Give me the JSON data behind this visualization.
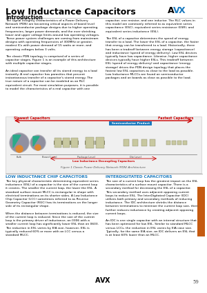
{
  "title": "Low Inductance Capacitors",
  "subtitle": "Introduction",
  "page_number": "59",
  "section1_title": "LOW INDUCTANCE CHIP CAPACITORS",
  "section2_title": "INTERDIGITATED CAPACITORS",
  "body_text_left": "The signal integrity characteristics of a Power Delivery\nNetwork (PDN) are becoming critical aspects of board level\nand semiconductor package designs due to higher operating\nfrequencies, larger power demands, and the ever shrinking\nlower and upper voltage limits around low operating voltages.\nThese power system challenges are coming from mainstream\ndesigns with operating frequencies of 300MHz or greater,\nmodest ICs with power demand of 15 watts or more, and\noperating voltages below 3 volts.\n\nThe classic PDN topology is comprised of a series of\ncapacitor stages. Figure 1 is an example of this architecture\nwith multiple capacitor stages.\n\nAn ideal capacitor can transfer all its stored energy to a load\ninstantly. A real capacitor has parasitics that prevent\ninstantaneous transfer of a capacitor's stored energy. The\ntrue nature of a capacitor can be modeled as an RLC\nequivalent circuit. For most simulation purposes, it is possible\nto model the characteristics of a real capacitor with one",
  "body_text_right": "capacitor, one resistor, and one inductor. The RLC values in\nthis model are commonly referred to as equivalent series\ncapacitance (ESC), equivalent series resistance (ESR), and\nequivalent series inductance (ESL).\n\nThe ESL of a capacitor determines the speed of energy\ntransfer to a load. The lower the ESL of a capacitor, the faster\nthat energy can be transferred to a load. Historically, there\nhas been a tradeoff between energy storage (capacitance)\nand inductance (speed of energy delivery). Low ESL devices\ntypically have low capacitance. Likewise, higher capacitance\ndevices typically have higher ESLs. This tradeoff between\nESL (speed of energy delivery) and capacitance (energy\nstorage) drives the PDN design topology that places the\nfastest low ESL capacitors as close to the load as possible.\nLow Inductance MLCCs are found on semiconductor\npackages and on boards as close as possible to the load.",
  "section1_body": "The key physical characteristic determining equivalent series\ninductance (ESL) of a capacitor is the size of the current loop\nit creates. The smaller the current loop, the lower the ESL. A\nstandard surface mount MLCC is rectangular in shape with\nelectrical terminations on its shorter sides. A Low Inductance\nChip Capacitor (LCC) sometimes referred to as Reverse\nGeometry Capacitor (RGC) has its terminations on the longer\nside of its rectangular shape.\n\nWhen the distance between terminations is reduced, the size\nof the current loop is reduced. Since the size of the current\nloop is the primary driver of inductance, an 0306 with a\nsmaller current loop has significantly lower ESL than an 0603.\nThe reduction in ESL varies by EIA size, however, ESL is\ntypically reduced 60% or more with an LCC versus a\nstandard MLCC.",
  "section2_body": "The size of a current loop has the greatest impact on the ESL\ncharacteristics of a surface mount capacitor. There is a\nsecondary method for decreasing the ESL of a capacitor.\nThis secondary method uses adjacent opposing current\nloops to reduce ESL. The InterDigitated Capacitor (IDC)\nutilizes both primary and secondary methods of reducing\ninductance. The IDC architecture shrinks the distance\nbetween terminations to minimize the current loop size, then\nfurther reduces inductance by creating adjacent opposing\ncurrent loops.\n\nAn IDC is one single capacitor with an internal structure that\nhas been optimized for low ESL. Similar to standard MLCC\nversus LCCs, the reduction in ESL varies by EIA case size.\nTypically, for the same EIA size, an IDC delivers an ESL that\nis at least 60% lower than an MLCC.",
  "fig_caption": "Figure 1 Classic Power Delivery Network (PDN) Architecture",
  "fig_label_left": "Slowest Capacitors",
  "fig_label_right": "Fastest Capacitors",
  "fig_label_semi": "Semiconductor Product",
  "fig_label_bottom": "Low Inductance Decoupling Capacitors",
  "fig_labels_bottom": [
    "Bulk",
    "Board Level",
    "Package Level",
    "Die Level"
  ],
  "bg_color": "#ffffff",
  "section_title_color": "#1a7abf",
  "orange_bar_color": "#c55a11",
  "semi_label_bg": "#1a7abf",
  "arrow_color": "#cc0000"
}
